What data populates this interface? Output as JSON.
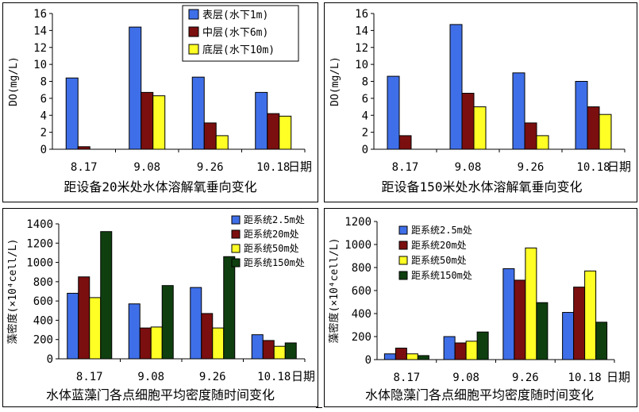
{
  "colors": {
    "blue": "#3f6fe8",
    "maroon": "#7b0f0f",
    "yellow": "#ffff26",
    "darkgreen": "#0f3f0f"
  },
  "chart_data": [
    {
      "type": "bar",
      "title": "距设备20米处水体溶解氧垂向变化",
      "xlabel": "日期",
      "ylabel": "DO(mg/L)",
      "ylim": [
        0,
        16
      ],
      "yticks": [
        0,
        2,
        4,
        6,
        8,
        10,
        12,
        14,
        16
      ],
      "categories": [
        "8.17",
        "9.08",
        "9.26",
        "10.18"
      ],
      "legend_position": "top-right",
      "series": [
        {
          "name": "表层(水下1m)",
          "color": "blue",
          "values": [
            8.4,
            14.4,
            8.5,
            6.7
          ]
        },
        {
          "name": "中层(水下6m)",
          "color": "maroon",
          "values": [
            0.3,
            6.7,
            3.1,
            4.2
          ]
        },
        {
          "name": "底层(水下10m)",
          "color": "yellow",
          "values": [
            0,
            6.3,
            1.6,
            3.9
          ]
        }
      ]
    },
    {
      "type": "bar",
      "title": "距设备150米处水体溶解氧垂向变化",
      "xlabel": "日期",
      "ylabel": "DO(mg/L)",
      "ylim": [
        0,
        16
      ],
      "yticks": [
        0,
        2,
        4,
        6,
        8,
        10,
        12,
        14,
        16
      ],
      "categories": [
        "8.17",
        "9.08",
        "9.26",
        "10.18"
      ],
      "legend_position": "none",
      "series": [
        {
          "name": "表层(水下1m)",
          "color": "blue",
          "values": [
            8.6,
            14.7,
            9.0,
            8.0
          ]
        },
        {
          "name": "中层(水下6m)",
          "color": "maroon",
          "values": [
            1.6,
            6.6,
            3.1,
            5.0
          ]
        },
        {
          "name": "底层(水下10m)",
          "color": "yellow",
          "values": [
            0,
            5.0,
            1.6,
            4.1
          ]
        }
      ]
    },
    {
      "type": "bar",
      "title": "水体蓝藻门各点细胞平均密度随时间变化",
      "xlabel": "日期",
      "ylabel": "藻密度(×10⁴cell/L)",
      "ylim": [
        0,
        1400
      ],
      "yticks": [
        0,
        200,
        400,
        600,
        800,
        1000,
        1200,
        1400
      ],
      "categories": [
        "8.17",
        "9.08",
        "9.26",
        "10.18"
      ],
      "legend_position": "top-right",
      "series": [
        {
          "name": "距系统2.5m处",
          "color": "blue",
          "values": [
            680,
            570,
            740,
            250
          ]
        },
        {
          "name": "距系统20m处",
          "color": "maroon",
          "values": [
            850,
            320,
            470,
            190
          ]
        },
        {
          "name": "距系统50m处",
          "color": "yellow",
          "values": [
            635,
            330,
            320,
            130
          ]
        },
        {
          "name": "距系统150m处",
          "color": "darkgreen",
          "values": [
            1320,
            760,
            1060,
            165
          ]
        }
      ]
    },
    {
      "type": "bar",
      "title": "水体隐藻门各点细胞平均密度随时间变化",
      "xlabel": "日期",
      "ylabel": "藻密度(×10⁴cell/L)",
      "ylim": [
        0,
        1200
      ],
      "yticks": [
        0,
        200,
        400,
        600,
        800,
        1000,
        1200
      ],
      "categories": [
        "8.17",
        "9.08",
        "9.26",
        "10.18"
      ],
      "legend_position": "top-left",
      "series": [
        {
          "name": "距系统2.5m处",
          "color": "blue",
          "values": [
            50,
            200,
            790,
            410
          ]
        },
        {
          "name": "距系统20m处",
          "color": "maroon",
          "values": [
            100,
            145,
            690,
            630
          ]
        },
        {
          "name": "距系统50m处",
          "color": "yellow",
          "values": [
            50,
            160,
            970,
            770
          ]
        },
        {
          "name": "距系统150m处",
          "color": "darkgreen",
          "values": [
            35,
            240,
            495,
            325
          ]
        }
      ]
    }
  ]
}
